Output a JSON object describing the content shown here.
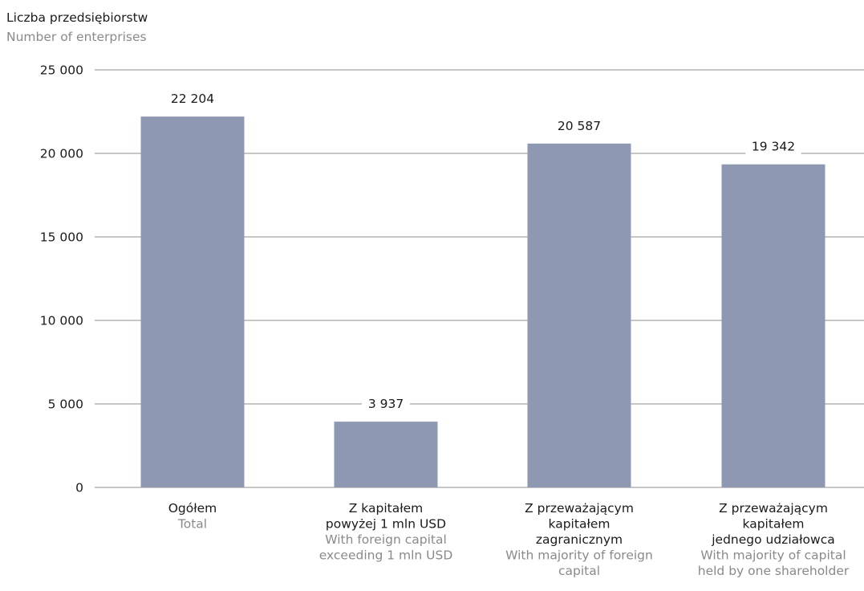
{
  "chart_data": {
    "type": "bar",
    "ylabel": "Liczba przedsiębiorstw",
    "ylabel_secondary": "Number of enterprises",
    "ylim": [
      0,
      25000
    ],
    "yticks": [
      0,
      5000,
      10000,
      15000,
      20000,
      25000
    ],
    "ytick_labels": [
      "0",
      "5 000",
      "10 000",
      "15 000",
      "20 000",
      "25 000"
    ],
    "grid": true,
    "bar_color": "#8f98b3",
    "categories": [
      {
        "label_pl": [
          "Ogółem"
        ],
        "label_en": [
          "Total"
        ]
      },
      {
        "label_pl": [
          "Z kapitałem",
          "powyżej 1 mln USD"
        ],
        "label_en": [
          "With foreign capital",
          "exceeding 1 mln USD"
        ]
      },
      {
        "label_pl": [
          "Z przeważającym",
          "kapitałem",
          "zagranicznym"
        ],
        "label_en": [
          "With majority of foreign",
          "capital"
        ]
      },
      {
        "label_pl": [
          "Z przeważającym",
          "kapitałem",
          "jednego udziałowca"
        ],
        "label_en": [
          "With majority of capital",
          "held by one shareholder"
        ]
      }
    ],
    "values": [
      22204,
      3937,
      20587,
      19342
    ],
    "value_labels": [
      "22 204",
      "3 937",
      "20 587",
      "19 342"
    ]
  }
}
